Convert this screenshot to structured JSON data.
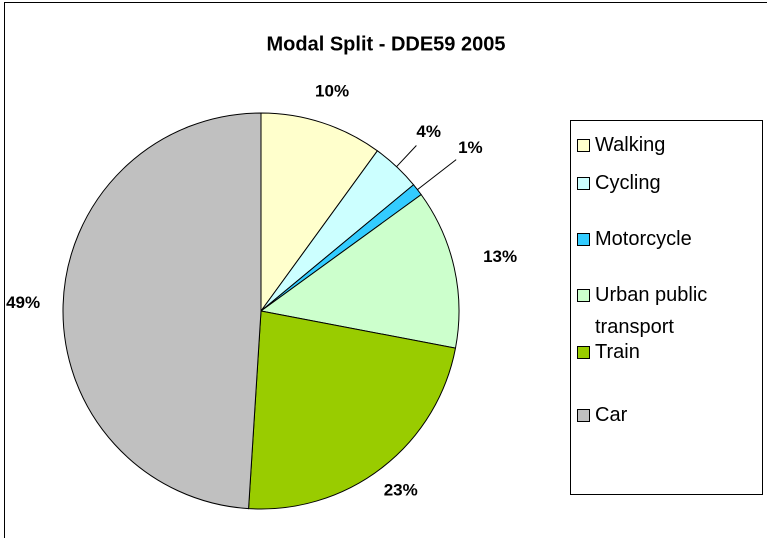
{
  "chart_data": {
    "type": "pie",
    "title": "Modal Split - DDE59 2005",
    "categories": [
      "Walking",
      "Cycling",
      "Motorcycle",
      "Urban public transport",
      "Train",
      "Car"
    ],
    "values": [
      10,
      4,
      1,
      13,
      23,
      49
    ],
    "value_labels": [
      "10%",
      "4%",
      "1%",
      "13%",
      "23%",
      "49%"
    ],
    "colors": [
      "#ffffcc",
      "#ccffff",
      "#33ccff",
      "#ccffcc",
      "#99cc00",
      "#c0c0c0"
    ],
    "legend": "right"
  }
}
